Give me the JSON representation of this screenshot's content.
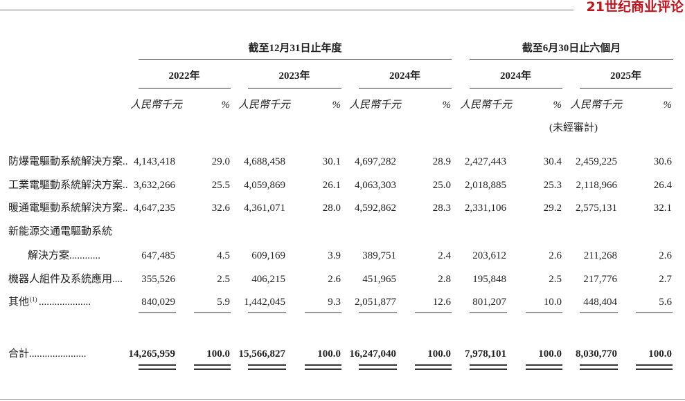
{
  "logo": "21世纪商业评论",
  "header": {
    "groups": [
      "截至12月31日止年度",
      "截至6月30日止六個月"
    ],
    "years": [
      "2022年",
      "2023年",
      "2024年",
      "2024年",
      "2025年"
    ],
    "amount_unit": "人民幣千元",
    "percent_unit": "%",
    "unaudited": "(未經審計)"
  },
  "table": {
    "rows": [
      {
        "label": [
          "防爆電驅動系統解決方案.."
        ],
        "values": [
          "4,143,418",
          "29.0",
          "4,688,458",
          "30.1",
          "4,697,282",
          "28.9",
          "2,427,443",
          "30.4",
          "2,459,225",
          "30.6"
        ]
      },
      {
        "label": [
          "工業電驅動系統解決方案.."
        ],
        "values": [
          "3,632,266",
          "25.5",
          "4,059,869",
          "26.1",
          "4,063,303",
          "25.0",
          "2,018,885",
          "25.3",
          "2,118,966",
          "26.4"
        ]
      },
      {
        "label": [
          "暖通電驅動系統解決方案.."
        ],
        "values": [
          "4,647,235",
          "32.6",
          "4,361,071",
          "28.0",
          "4,592,862",
          "28.3",
          "2,331,106",
          "29.2",
          "2,575,131",
          "32.1"
        ]
      },
      {
        "label": [
          "新能源交通電驅動系統",
          "解決方案............"
        ],
        "values": [
          "647,485",
          "4.5",
          "609,169",
          "3.9",
          "389,751",
          "2.4",
          "203,612",
          "2.6",
          "211,268",
          "2.6"
        ]
      },
      {
        "label": [
          "機器人組件及系統應用...."
        ],
        "values": [
          "355,526",
          "2.5",
          "406,215",
          "2.6",
          "451,965",
          "2.8",
          "195,848",
          "2.5",
          "217,776",
          "2.7"
        ]
      },
      {
        "label": [
          "其他"
        ],
        "note": "(1)",
        "leader": "....................",
        "values": [
          "840,029",
          "5.9",
          "1,442,045",
          "9.3",
          "2,051,877",
          "12.6",
          "801,207",
          "10.0",
          "448,404",
          "5.6"
        ]
      }
    ],
    "total": {
      "label": "合計......................",
      "values": [
        "14,265,959",
        "100.0",
        "15,566,827",
        "100.0",
        "16,247,040",
        "100.0",
        "7,978,101",
        "100.0",
        "8,030,770",
        "100.0"
      ]
    }
  }
}
